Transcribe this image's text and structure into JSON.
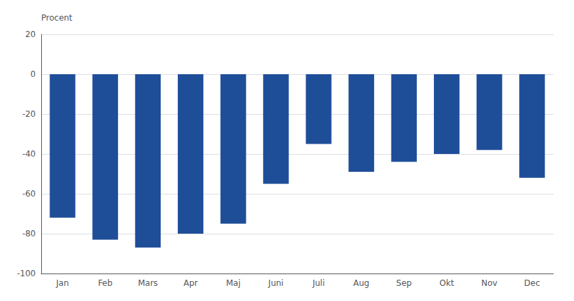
{
  "chart_data": {
    "type": "bar",
    "ylabel": "Procent",
    "categories": [
      "Jan",
      "Feb",
      "Mars",
      "Apr",
      "Maj",
      "Juni",
      "Juli",
      "Aug",
      "Sep",
      "Okt",
      "Nov",
      "Dec"
    ],
    "values": [
      -72,
      -83,
      -87,
      -80,
      -75,
      -55,
      -35,
      -49,
      -44,
      -40,
      -38,
      -52
    ],
    "color": "#1F4E99",
    "ylim": [
      -100,
      20
    ],
    "yticks": [
      -100,
      -80,
      -60,
      -40,
      -20,
      0,
      20
    ],
    "grid": true
  }
}
